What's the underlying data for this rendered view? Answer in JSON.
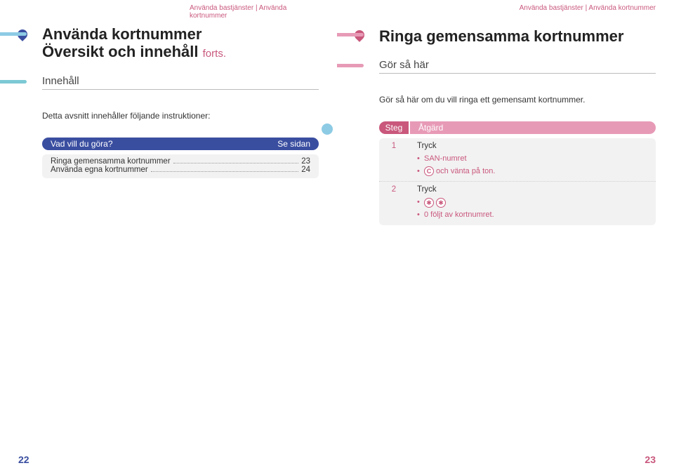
{
  "left": {
    "breadcrumb": "Använda bastjänster | Använda kortnummer",
    "title_line1": "Använda kortnummer",
    "title_line2": "Översikt och innehåll",
    "title_cont": "forts.",
    "section": "Innehåll",
    "intro": "Detta avsnitt innehåller följande instruktioner:",
    "toc_head_left": "Vad vill du göra?",
    "toc_head_right": "Se sidan",
    "toc": [
      {
        "label": "Ringa gemensamma kortnummer",
        "page": "23"
      },
      {
        "label": "Använda egna kortnummer",
        "page": "24"
      }
    ],
    "page_number": "22"
  },
  "right": {
    "breadcrumb": "Använda bastjänster | Använda kortnummer",
    "title": "Ringa gemensamma kortnummer",
    "section": "Gör så här",
    "intro": "Gör så här om du vill ringa ett gemensamt kortnummer.",
    "steps_head_left": "Steg",
    "steps_head_right": "Åtgärd",
    "steps": [
      {
        "num": "1",
        "main": "Tryck",
        "bullets": [
          {
            "text": "SAN-numret"
          },
          {
            "icon": "c",
            "text": " och vänta på ton."
          }
        ]
      },
      {
        "num": "2",
        "main": "Tryck",
        "bullets": [
          {
            "icon": "star2"
          },
          {
            "text": "0 följt av kortnumret."
          }
        ]
      }
    ],
    "page_number": "23"
  }
}
